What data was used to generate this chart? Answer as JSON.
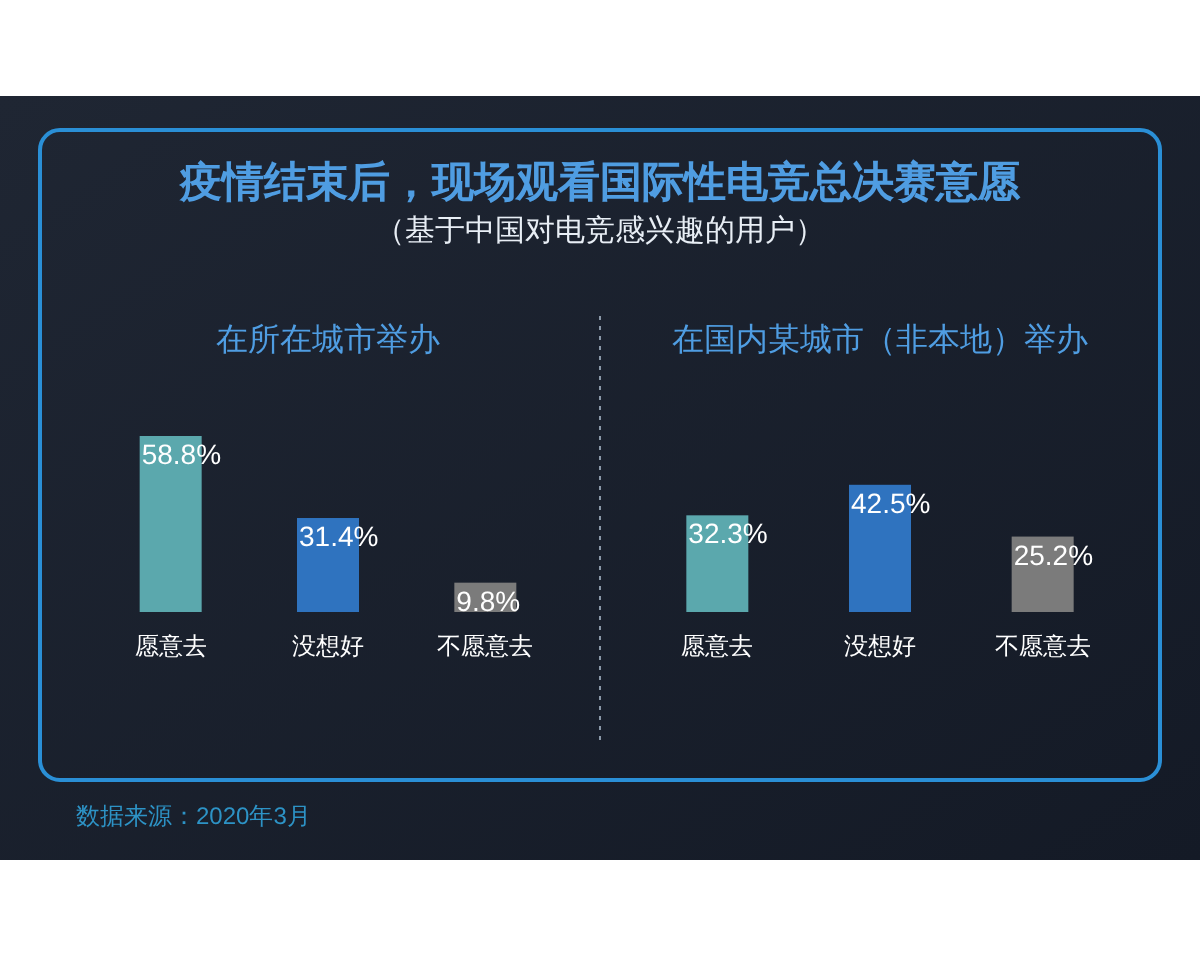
{
  "chart_data": [
    {
      "type": "other",
      "title": "疫情结束后，现场观看国际性电竞总决赛意愿",
      "subtitle": "（基于中国对电竞感兴趣的用户）",
      "annotations": [
        "数据来源：2020年3月"
      ]
    },
    {
      "type": "bar",
      "title": "在所在城市举办",
      "categories": [
        "愿意去",
        "没想好",
        "不愿意去"
      ],
      "values": [
        58.8,
        31.4,
        9.8
      ],
      "value_labels": [
        "58.8%",
        "31.4%",
        "9.8%"
      ],
      "colors": [
        "#5ba8ad",
        "#2f73bf",
        "#7b7b7b"
      ]
    },
    {
      "type": "bar",
      "title": "在国内某城市（非本地）举办",
      "categories": [
        "愿意去",
        "没想好",
        "不愿意去"
      ],
      "values": [
        32.3,
        42.5,
        25.2
      ],
      "value_labels": [
        "32.3%",
        "42.5%",
        "25.2%"
      ],
      "colors": [
        "#5ba8ad",
        "#2f73bf",
        "#7b7b7b"
      ]
    }
  ]
}
